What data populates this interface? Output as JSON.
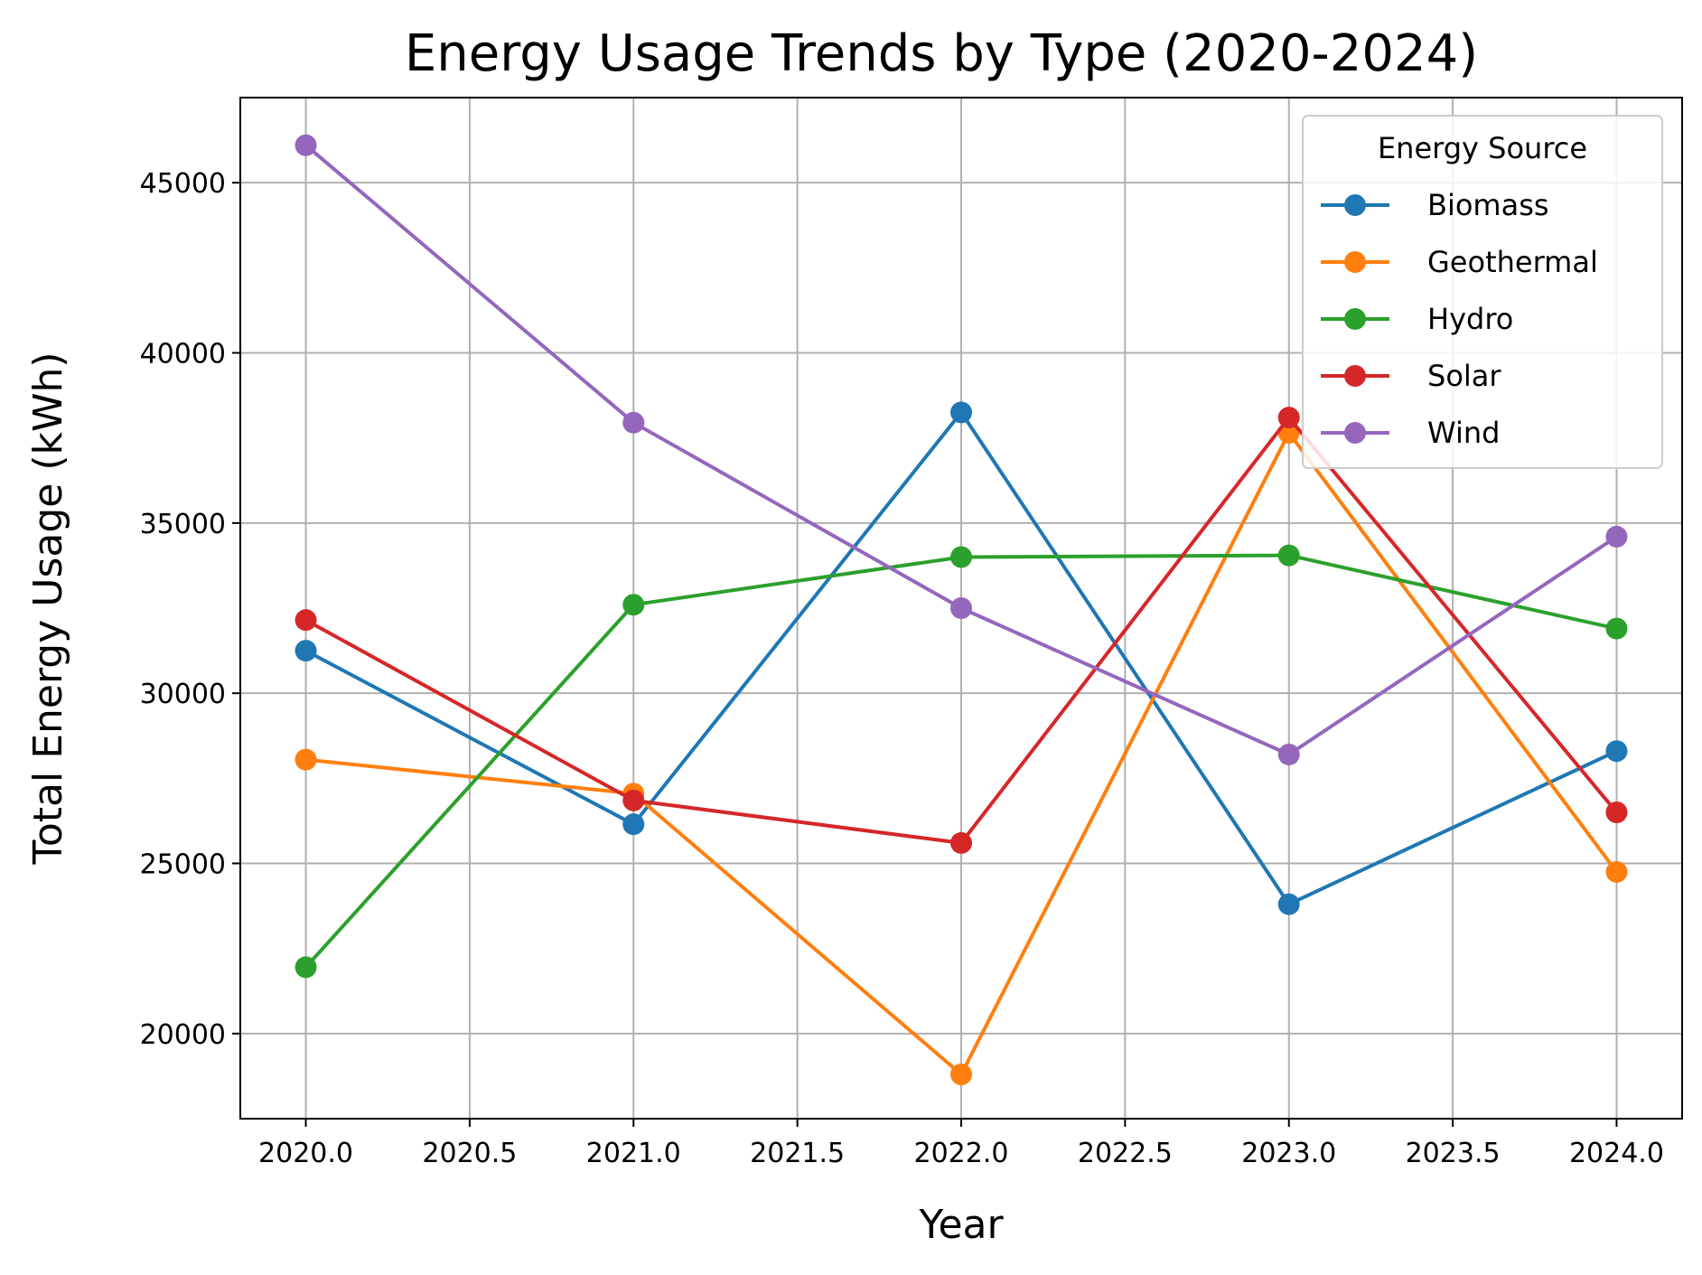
{
  "chart_data": {
    "type": "line",
    "title": "Energy Usage Trends by Type (2020-2024)",
    "xlabel": "Year",
    "ylabel": "Total Energy Usage (kWh)",
    "xlim": [
      2019.8,
      2024.2
    ],
    "ylim": [
      17500,
      47500
    ],
    "x_ticks": [
      "2020.0",
      "2020.5",
      "2021.0",
      "2021.5",
      "2022.0",
      "2022.5",
      "2023.0",
      "2023.5",
      "2024.0"
    ],
    "y_ticks": [
      "20000",
      "25000",
      "30000",
      "35000",
      "40000",
      "45000"
    ],
    "grid": true,
    "legend": {
      "title": "Energy Source",
      "placement": "top-right"
    },
    "x": [
      2020,
      2021,
      2022,
      2023,
      2024
    ],
    "series": [
      {
        "name": "Biomass",
        "color": "#1f77b4",
        "values": [
          31250,
          26150,
          38250,
          23800,
          28300
        ]
      },
      {
        "name": "Geothermal",
        "color": "#ff7f0e",
        "values": [
          28050,
          27050,
          18800,
          37650,
          24750
        ]
      },
      {
        "name": "Hydro",
        "color": "#2ca02c",
        "values": [
          21950,
          32600,
          34000,
          34050,
          31900
        ]
      },
      {
        "name": "Solar",
        "color": "#d62728",
        "values": [
          32150,
          26850,
          25600,
          38100,
          26500
        ]
      },
      {
        "name": "Wind",
        "color": "#9467bd",
        "values": [
          46100,
          37950,
          32500,
          28200,
          34600
        ]
      }
    ]
  }
}
